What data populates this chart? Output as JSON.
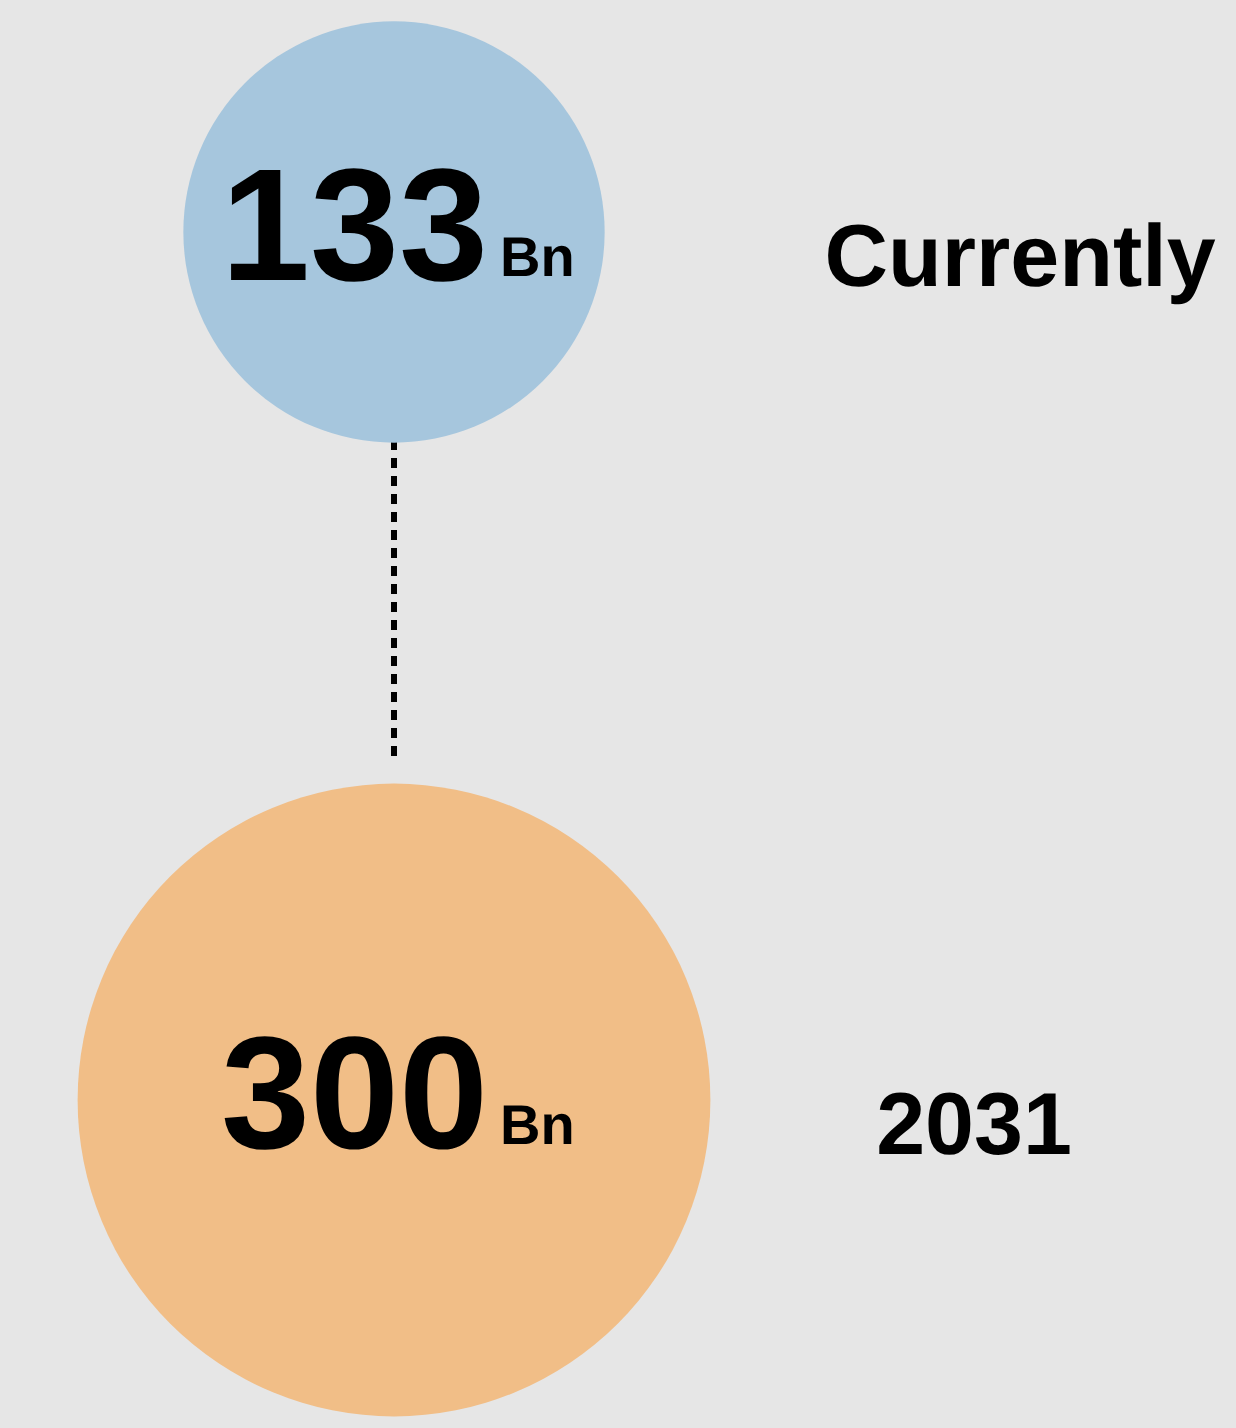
{
  "chart_data": {
    "type": "other",
    "categories": [
      "Currently",
      "2031"
    ],
    "values": [
      133,
      300
    ],
    "data_labels": true,
    "annotations": [
      "Bn",
      "Bn"
    ],
    "colors": [
      "#a6c6dd",
      "#f1be87"
    ]
  }
}
